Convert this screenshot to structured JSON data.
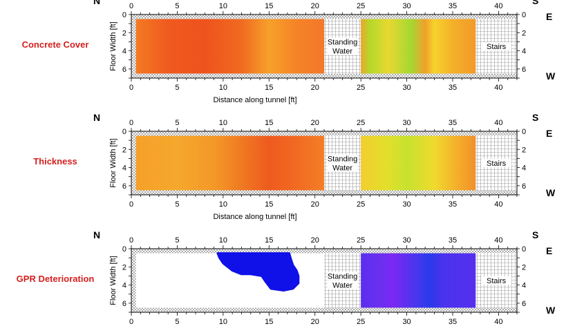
{
  "chart_data": [
    {
      "type": "heatmap",
      "row_label": "Concrete Cover",
      "xlabel": "Distance along tunnel [ft]",
      "ylabel": "Floor Width [ft]",
      "xlim": [
        0,
        42
      ],
      "ylim": [
        0,
        7
      ],
      "xticks": [
        0,
        5,
        10,
        15,
        20,
        25,
        30,
        35,
        40
      ],
      "yticks": [
        0,
        2,
        4,
        6
      ],
      "compass": {
        "north": "N",
        "south": "S",
        "east": "E",
        "west": "W"
      },
      "masked_regions": [
        {
          "x": [
            21,
            25
          ],
          "label": [
            "Standing",
            "Water"
          ]
        },
        {
          "x": [
            37.5,
            42
          ],
          "label": [
            "Stairs"
          ]
        }
      ],
      "survey_x_ranges": [
        [
          0.5,
          21
        ],
        [
          25,
          37.5
        ]
      ],
      "survey_y_range": [
        0.5,
        6.5
      ],
      "color_profile": [
        {
          "x": 0.5,
          "color": "#f47a22"
        },
        {
          "x": 4,
          "color": "#ef5a1f"
        },
        {
          "x": 8,
          "color": "#ee531d"
        },
        {
          "x": 12,
          "color": "#f06a20"
        },
        {
          "x": 15,
          "color": "#f7a02a"
        },
        {
          "x": 18,
          "color": "#f58326"
        },
        {
          "x": 21,
          "color": "#f4782a"
        },
        {
          "x": 25,
          "color": "#eaa82a"
        },
        {
          "x": 26,
          "color": "#b5d82a"
        },
        {
          "x": 28,
          "color": "#e8d830"
        },
        {
          "x": 30.5,
          "color": "#a4d832"
        },
        {
          "x": 32,
          "color": "#f0a02a"
        },
        {
          "x": 33,
          "color": "#f6d22c"
        },
        {
          "x": 35,
          "color": "#f4b02a"
        },
        {
          "x": 37.5,
          "color": "#f29a27"
        }
      ]
    },
    {
      "type": "heatmap",
      "row_label": "Thickness",
      "xlabel": "Distance along tunnel [ft]",
      "ylabel": "Floor Width [ft]",
      "xlim": [
        0,
        42
      ],
      "ylim": [
        0,
        7
      ],
      "xticks": [
        0,
        5,
        10,
        15,
        20,
        25,
        30,
        35,
        40
      ],
      "yticks": [
        0,
        2,
        4,
        6
      ],
      "compass": {
        "north": "N",
        "south": "S",
        "east": "E",
        "west": "W"
      },
      "masked_regions": [
        {
          "x": [
            21,
            25
          ],
          "label": [
            "Standing",
            "Water"
          ]
        },
        {
          "x": [
            37.5,
            42
          ],
          "label": [
            "Stairs"
          ]
        }
      ],
      "survey_x_ranges": [
        [
          0.5,
          21
        ],
        [
          25,
          37.5
        ]
      ],
      "survey_y_range": [
        0.5,
        6.5
      ],
      "color_profile": [
        {
          "x": 0.5,
          "color": "#f6a02a"
        },
        {
          "x": 5,
          "color": "#f5a82c"
        },
        {
          "x": 9,
          "color": "#f49828"
        },
        {
          "x": 12,
          "color": "#f07a22"
        },
        {
          "x": 15,
          "color": "#ee5a1e"
        },
        {
          "x": 18,
          "color": "#f26a22"
        },
        {
          "x": 21,
          "color": "#f47e26"
        },
        {
          "x": 25,
          "color": "#f2ce2e"
        },
        {
          "x": 28,
          "color": "#e2e02c"
        },
        {
          "x": 30,
          "color": "#c6e22e"
        },
        {
          "x": 33,
          "color": "#f0da2e"
        },
        {
          "x": 35.5,
          "color": "#f4ae2a"
        },
        {
          "x": 37.5,
          "color": "#f2902a"
        }
      ]
    },
    {
      "type": "heatmap",
      "row_label": "GPR Deterioration",
      "xlabel": "",
      "ylabel": "Floor Width [ft]",
      "xlim": [
        0,
        42
      ],
      "ylim": [
        0,
        7
      ],
      "xticks": [
        0,
        5,
        10,
        15,
        20,
        25,
        30,
        35,
        40
      ],
      "yticks": [
        0,
        2,
        4,
        6
      ],
      "compass": {
        "north": "N",
        "south": "S",
        "east": "E",
        "west": "W"
      },
      "masked_regions": [
        {
          "x": [
            21,
            25
          ],
          "label": [
            "Standing",
            "Water"
          ]
        },
        {
          "x": [
            37.5,
            42
          ],
          "label": [
            "Stairs"
          ]
        }
      ],
      "survey_x_ranges": [
        [
          0.5,
          21
        ],
        [
          25,
          37.5
        ]
      ],
      "survey_y_range": [
        0.5,
        6.5
      ],
      "background_color": "#ffffff",
      "color_profile": [
        {
          "x": 25,
          "color": "#5a2ef0"
        },
        {
          "x": 27,
          "color": "#6a30f0"
        },
        {
          "x": 28.5,
          "color": "#7a28f2"
        },
        {
          "x": 31,
          "color": "#4a36ee"
        },
        {
          "x": 32.5,
          "color": "#2a3aec"
        },
        {
          "x": 34,
          "color": "#4a32ee"
        },
        {
          "x": 37.5,
          "color": "#5530ee"
        }
      ],
      "blob": {
        "color": "#1010e8",
        "outline": [
          [
            9.4,
            0.5
          ],
          [
            17.2,
            0.5
          ],
          [
            17.4,
            1.2
          ],
          [
            17.6,
            1.8
          ],
          [
            18.0,
            2.4
          ],
          [
            18.2,
            3.0
          ],
          [
            18.2,
            3.8
          ],
          [
            17.6,
            4.4
          ],
          [
            16.6,
            4.6
          ],
          [
            15.2,
            4.4
          ],
          [
            14.6,
            3.6
          ],
          [
            14.2,
            3.0
          ],
          [
            13.0,
            2.8
          ],
          [
            12.0,
            2.8
          ],
          [
            11.0,
            2.4
          ],
          [
            10.0,
            1.6
          ],
          [
            9.6,
            1.0
          ]
        ]
      }
    }
  ]
}
